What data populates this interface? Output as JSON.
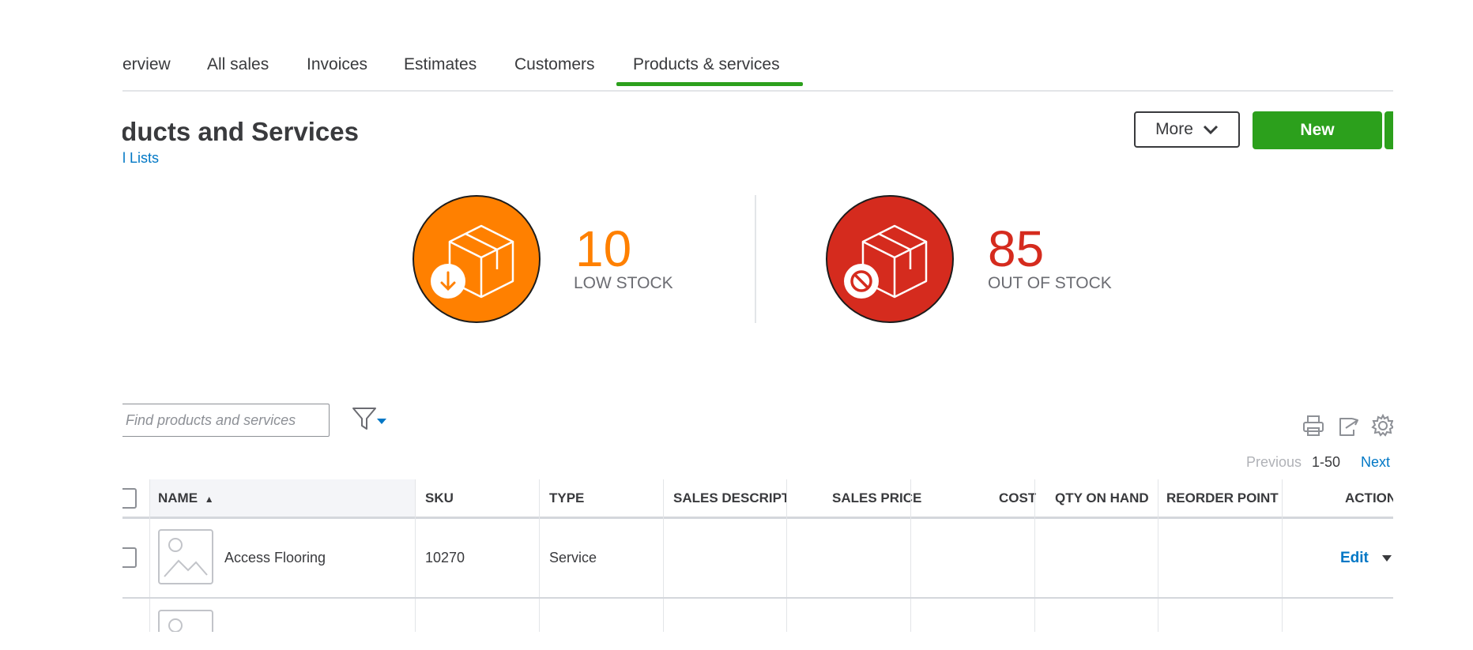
{
  "tabs": [
    {
      "label": "erview"
    },
    {
      "label": "All sales"
    },
    {
      "label": "Invoices"
    },
    {
      "label": "Estimates"
    },
    {
      "label": "Customers"
    },
    {
      "label": "Products & services"
    }
  ],
  "active_tab_index": 5,
  "header": {
    "title": "oducts and Services",
    "breadcrumb": "l Lists",
    "more_label": "More",
    "new_label": "New"
  },
  "stock": {
    "low": {
      "count": "10",
      "label": "LOW STOCK",
      "color": "#ff8000"
    },
    "out": {
      "count": "85",
      "label": "OUT OF STOCK",
      "color": "#d52b1e"
    }
  },
  "search": {
    "placeholder": "Find products and services"
  },
  "pagination": {
    "previous": "Previous",
    "range": "1-50",
    "next": "Next"
  },
  "table": {
    "columns": {
      "name": "NAME",
      "sku": "SKU",
      "type": "TYPE",
      "sales_description": "SALES DESCRIPTIC",
      "sales_price": "SALES PRICE",
      "cost": "COST",
      "qty_on_hand": "QTY ON HAND",
      "reorder_point": "REORDER POINT",
      "action": "ACTION"
    },
    "sort_indicator": "▲",
    "rows": [
      {
        "name": "Access Flooring",
        "sku": "10270",
        "type": "Service",
        "sales_description": "",
        "sales_price": "",
        "cost": "",
        "qty_on_hand": "",
        "reorder_point": "",
        "action": "Edit"
      }
    ]
  },
  "colors": {
    "accent_green": "#2ca01c",
    "link_blue": "#0077c5",
    "text": "#393a3d"
  }
}
